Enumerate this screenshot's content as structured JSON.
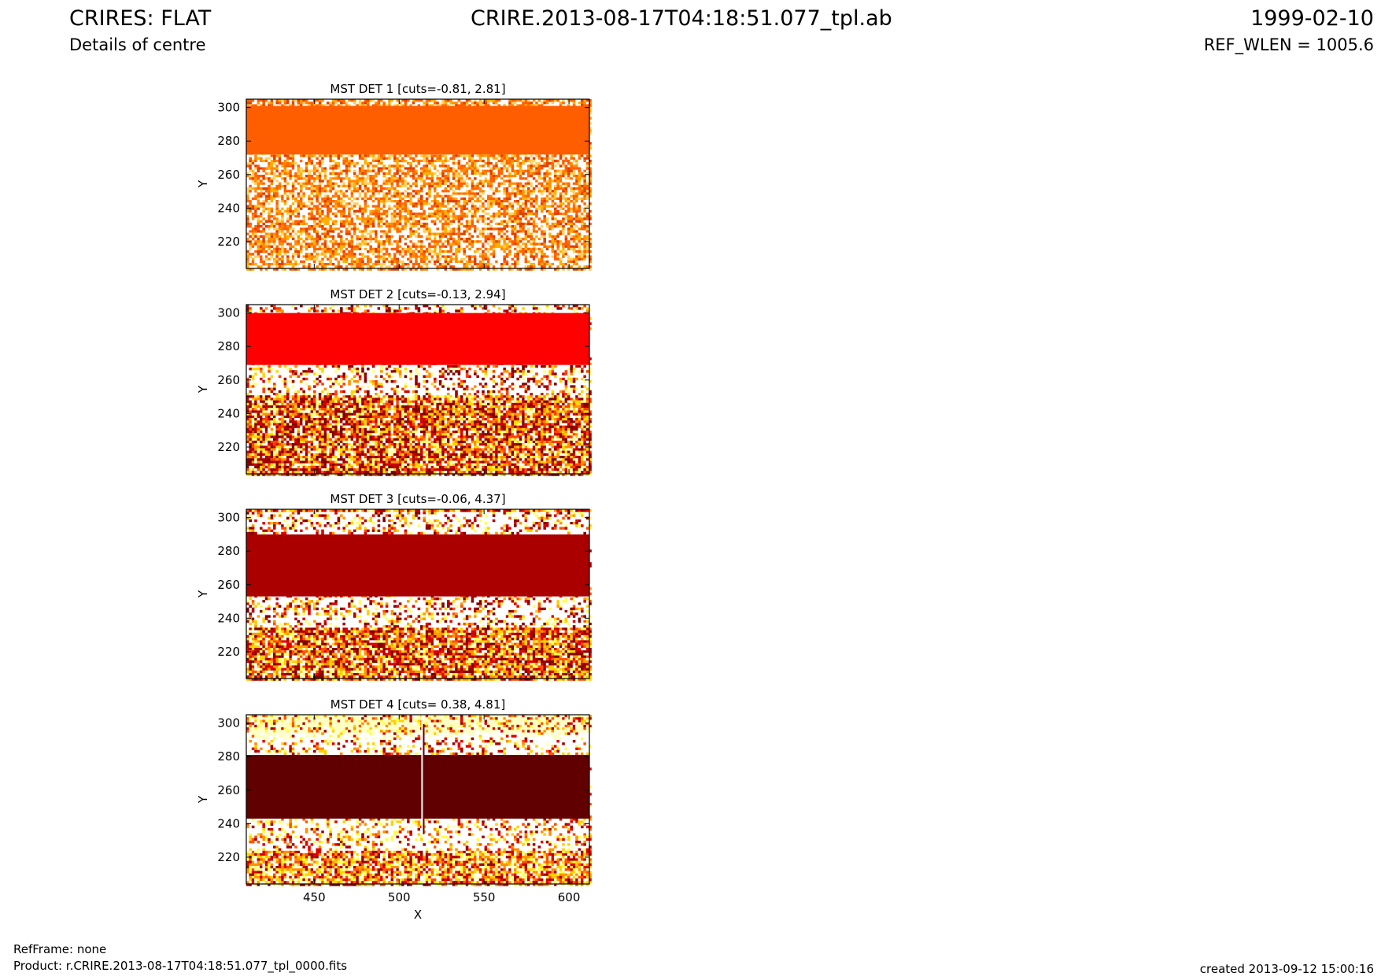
{
  "header": {
    "title": "CRIRES: FLAT",
    "subtitle": "Details of centre",
    "center": "CRIRE.2013-08-17T04:18:51.077_tpl.ab",
    "date": "1999-02-10",
    "ref_wlen": "REF_WLEN = 1005.6"
  },
  "footer": {
    "refframe": "RefFrame: none",
    "product": "Product: r.CRIRE.2013-08-17T04:18:51.077_tpl_0000.fits",
    "created": "created 2013-09-12 15:00:16"
  },
  "chart_data": [
    {
      "type": "heatmap",
      "title": "MST DET 1 [cuts=-0.81, 2.81]",
      "cuts": [
        -0.81,
        2.81
      ],
      "xlabel": "",
      "ylabel": "Y",
      "xlim": [
        410,
        612
      ],
      "ylim": [
        204,
        305
      ],
      "xticks": [],
      "yticks": [
        220,
        240,
        260,
        280,
        300
      ],
      "band": {
        "y_range": [
          272,
          301
        ],
        "color": "#ff5e00"
      },
      "colormap": "hot (white / yellow / orange / red)"
    },
    {
      "type": "heatmap",
      "title": "MST DET 2 [cuts=-0.13, 2.94]",
      "cuts": [
        -0.13,
        2.94
      ],
      "xlabel": "",
      "ylabel": "Y",
      "xlim": [
        410,
        612
      ],
      "ylim": [
        204,
        305
      ],
      "xticks": [],
      "yticks": [
        220,
        240,
        260,
        280,
        300
      ],
      "band": {
        "y_range": [
          269,
          300
        ],
        "color": "#ff0000"
      },
      "colormap": "hot"
    },
    {
      "type": "heatmap",
      "title": "MST DET 3 [cuts=-0.06, 4.37]",
      "cuts": [
        -0.06,
        4.37
      ],
      "xlabel": "",
      "ylabel": "Y",
      "xlim": [
        410,
        612
      ],
      "ylim": [
        204,
        305
      ],
      "xticks": [],
      "yticks": [
        220,
        240,
        260,
        280,
        300
      ],
      "band": {
        "y_range": [
          253,
          290
        ],
        "color": "#aa0000"
      },
      "colormap": "hot"
    },
    {
      "type": "heatmap",
      "title": "MST DET 4 [cuts= 0.38, 4.81]",
      "cuts": [
        0.38,
        4.81
      ],
      "xlabel": "X",
      "ylabel": "Y",
      "xlim": [
        410,
        612
      ],
      "ylim": [
        204,
        305
      ],
      "xticks": [
        450,
        500,
        550,
        600
      ],
      "yticks": [
        220,
        240,
        260,
        280,
        300
      ],
      "band": {
        "y_range": [
          243,
          281
        ],
        "color": "#600000"
      },
      "colormap": "hot"
    }
  ]
}
